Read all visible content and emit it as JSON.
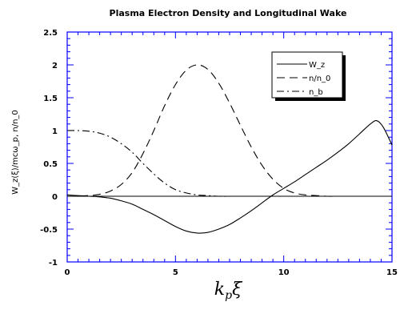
{
  "chart_data": {
    "type": "line",
    "title": "Plasma Electron Density and Longitudinal Wake",
    "xlabel_main": "k",
    "xlabel_sub": "p",
    "xlabel_greek": "ξ",
    "ylabel": "W_z(ξ)/mcω_p,  n/n_0",
    "xlim": [
      0,
      15
    ],
    "ylim": [
      -1,
      2.5
    ],
    "xticks": [
      "0",
      "5",
      "10",
      "15"
    ],
    "xtick_values": [
      0,
      5,
      10,
      15
    ],
    "yticks": [
      "-1",
      "-0.5",
      "0",
      "0.5",
      "1",
      "1.5",
      "2",
      "2.5"
    ],
    "ytick_values": [
      -1,
      -0.5,
      0,
      0.5,
      1,
      1.5,
      2,
      2.5
    ],
    "legend_placement": "top-right",
    "grid": false,
    "series": [
      {
        "name": "W_z",
        "dash": "solid",
        "x": [
          0,
          0.5,
          1,
          1.5,
          2,
          2.5,
          3,
          3.5,
          4,
          4.5,
          5,
          5.5,
          6,
          6.5,
          7,
          7.5,
          8,
          8.5,
          9,
          9.5,
          10,
          10.5,
          11,
          11.5,
          12,
          12.5,
          13,
          13.5,
          14,
          14.3,
          14.6,
          15
        ],
        "y": [
          0.02,
          0.01,
          0,
          -0.01,
          -0.03,
          -0.07,
          -0.12,
          -0.2,
          -0.28,
          -0.37,
          -0.46,
          -0.53,
          -0.56,
          -0.55,
          -0.5,
          -0.43,
          -0.33,
          -0.22,
          -0.1,
          0.02,
          0.12,
          0.22,
          0.33,
          0.44,
          0.55,
          0.67,
          0.8,
          0.95,
          1.1,
          1.15,
          1.05,
          0.78
        ]
      },
      {
        "name": "n/n_0",
        "dash": "long-dash",
        "x": [
          0,
          1,
          1.5,
          2,
          2.5,
          3,
          3.5,
          4,
          4.5,
          5,
          5.5,
          6,
          6.5,
          7,
          7.5,
          8,
          8.5,
          9,
          9.5,
          10,
          10.5,
          11,
          11.5,
          12,
          12.5
        ],
        "y": [
          0,
          0.01,
          0.03,
          0.08,
          0.18,
          0.36,
          0.65,
          1.0,
          1.38,
          1.7,
          1.92,
          2.0,
          1.93,
          1.72,
          1.42,
          1.08,
          0.75,
          0.47,
          0.26,
          0.12,
          0.05,
          0.02,
          0.01,
          0,
          0
        ]
      },
      {
        "name": "n_b",
        "dash": "dash-dot",
        "x": [
          0,
          0.5,
          1,
          1.5,
          2,
          2.5,
          3,
          3.5,
          4,
          4.5,
          5,
          5.5,
          6,
          6.5,
          7,
          7.5
        ],
        "y": [
          1.0,
          1.0,
          0.99,
          0.96,
          0.9,
          0.8,
          0.67,
          0.5,
          0.34,
          0.2,
          0.1,
          0.05,
          0.02,
          0.01,
          0,
          0
        ]
      }
    ]
  }
}
